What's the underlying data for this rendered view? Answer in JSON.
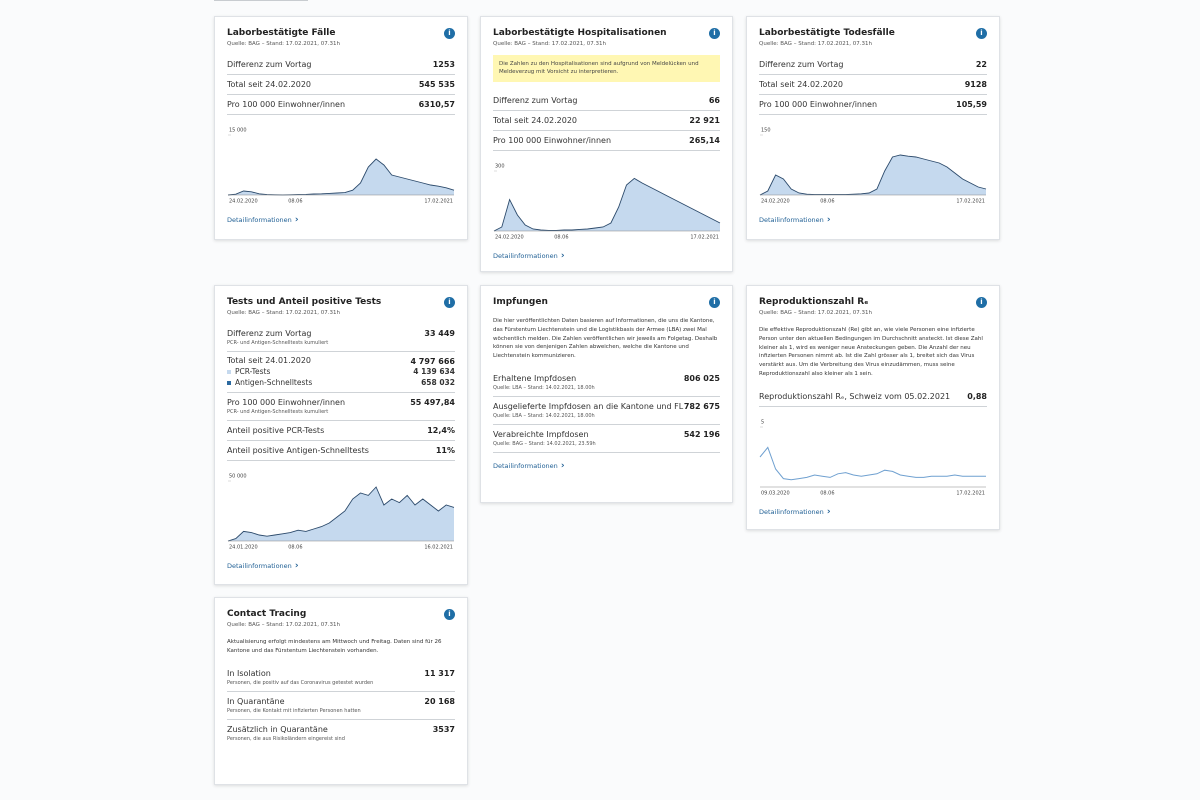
{
  "cards": [
    {
      "title": "Laborbestätigte Fälle",
      "source": "Quelle: BAG – Stand: 17.02.2021, 07.31h",
      "rows": [
        {
          "label": "Differenz zum Vortag",
          "value": "1253"
        },
        {
          "label": "Total seit 24.02.2020",
          "value": "545 535"
        },
        {
          "label": "Pro 100 000 Einwohner/innen",
          "value": "6310,57"
        }
      ],
      "chart": {
        "style": "area",
        "ylim": [
          0,
          15000
        ],
        "yticks": [
          {
            "value": 15000,
            "label": "15 000"
          }
        ],
        "x_labels": [
          "24.02.2020",
          "08.06",
          "17.02.2021"
        ],
        "values": [
          0,
          200,
          1000,
          800,
          300,
          100,
          50,
          30,
          50,
          100,
          150,
          250,
          300,
          400,
          500,
          600,
          1200,
          3000,
          7000,
          9000,
          7500,
          5000,
          4500,
          4000,
          3500,
          3000,
          2500,
          2200,
          1800,
          1200
        ]
      },
      "link": "Detailinformationen"
    },
    {
      "title": "Laborbestätigte Hospitalisationen",
      "source": "Quelle: BAG – Stand: 17.02.2021, 07.31h",
      "note": "Die Zahlen zu den Hospitalisationen sind aufgrund von Meldelücken und Meldeverzug mit Vorsicht zu interpretieren.",
      "rows": [
        {
          "label": "Differenz zum Vortag",
          "value": "66"
        },
        {
          "label": "Total seit 24.02.2020",
          "value": "22 921"
        },
        {
          "label": "Pro 100 000 Einwohner/innen",
          "value": "265,14"
        }
      ],
      "chart": {
        "style": "area",
        "ylim": [
          0,
          300
        ],
        "yticks": [
          300
        ],
        "x_labels": [
          "24.02.2020",
          "08.06",
          "17.02.2021"
        ],
        "values": [
          0,
          20,
          157,
          80,
          30,
          10,
          5,
          3,
          3,
          5,
          5,
          8,
          10,
          15,
          20,
          40,
          120,
          230,
          263,
          240,
          220,
          200,
          180,
          160,
          140,
          120,
          100,
          80,
          60,
          40
        ]
      },
      "link": "Detailinformationen"
    },
    {
      "title": "Laborbestätigte Todesfälle",
      "source": "Quelle: BAG – Stand: 17.02.2021, 07.31h",
      "rows": [
        {
          "label": "Differenz zum Vortag",
          "value": "22"
        },
        {
          "label": "Total seit 24.02.2020",
          "value": "9128"
        },
        {
          "label": "Pro 100 000 Einwohner/innen",
          "value": "105,59"
        }
      ],
      "chart": {
        "style": "area",
        "ylim": [
          0,
          150
        ],
        "yticks": [
          150
        ],
        "x_labels": [
          "24.02.2020",
          "08.06",
          "17.02.2021"
        ],
        "values": [
          0,
          10,
          50,
          40,
          15,
          5,
          2,
          1,
          1,
          1,
          1,
          1,
          2,
          3,
          5,
          15,
          60,
          95,
          100,
          97,
          95,
          90,
          85,
          80,
          70,
          55,
          40,
          30,
          20,
          15
        ]
      },
      "link": "Detailinformationen"
    },
    {
      "title": "Tests und Anteil positive Tests",
      "source": "Quelle: BAG – Stand: 17.02.2021, 07.31h",
      "rows": [
        {
          "label": "Differenz zum Vortag",
          "sublabel": "PCR- und Antigen-Schnelltests kumuliert",
          "value": "33 449"
        },
        {
          "label": "Total seit 24.01.2020",
          "value": "4 797 666",
          "items": [
            {
              "label": "PCR-Tests",
              "value": "4 139 634"
            },
            {
              "label": "Antigen-Schnelltests",
              "value": "658 032"
            }
          ]
        },
        {
          "label": "Pro 100 000 Einwohner/innen",
          "sublabel": "PCR- und Antigen-Schnelltests kumuliert",
          "value": "55 497,84"
        },
        {
          "label": "Anteil positive PCR-Tests",
          "value": "12,4%"
        },
        {
          "label": "Anteil positive Antigen-Schnelltests",
          "value": "11%"
        }
      ],
      "chart": {
        "style": "area",
        "ylim": [
          0,
          50000
        ],
        "yticks": [
          {
            "value": 50000,
            "label": "50 000"
          }
        ],
        "x_labels": [
          "24.01.2020",
          "08.06",
          "16.02.2021"
        ],
        "values": [
          0,
          2000,
          8000,
          7000,
          5000,
          4000,
          5000,
          6000,
          7000,
          9000,
          8000,
          10000,
          12000,
          15000,
          20000,
          25000,
          35000,
          40000,
          38000,
          45000,
          30000,
          35000,
          32000,
          38000,
          30000,
          35000,
          30000,
          25000,
          30000,
          28000
        ]
      },
      "link": "Detailinformationen"
    },
    {
      "title": "Impfungen",
      "description": "Die hier veröffentlichten Daten basieren auf Informationen, die uns die Kantone, das Fürstentum Liechtenstein und die Logistikbasis der Armee (LBA) zwei Mal wöchentlich melden. Die Zahlen veröffentlichen wir jeweils am Folgetag. Deshalb können sie von denjenigen Zahlen abweichen, welche die Kantone und Liechtenstein kommunizieren.",
      "rows": [
        {
          "label": "Erhaltene Impfdosen",
          "sublabel": "Quelle: LBA – Stand: 14.02.2021, 18.00h",
          "value": "806 025"
        },
        {
          "label": "Ausgelieferte Impfdosen an die Kantone und FL",
          "sublabel": "Quelle: LBA – Stand: 14.02.2021, 18.00h",
          "value": "782 675"
        },
        {
          "label": "Verabreichte Impfdosen",
          "sublabel": "Quelle: BAG – Stand: 14.02.2021, 23.59h",
          "value": "542 196"
        }
      ],
      "link": "Detailinformationen"
    },
    {
      "title": "Reproduktionszahl Rₑ",
      "source": "Quelle: BAG – Stand: 17.02.2021, 07.31h",
      "description": "Die effektive Reproduktionszahl (Re) gibt an, wie viele Personen eine infizierte Person unter den aktuellen Bedingungen im Durchschnitt ansteckt. Ist diese Zahl kleiner als 1, wird es weniger neue Ansteckungen geben. Die Anzahl der neu infizierten Personen nimmt ab. Ist die Zahl grösser als 1, breitet sich das Virus verstärkt aus. Um die Verbreitung des Virus einzudämmen, muss seine Reproduktionszahl also kleiner als 1 sein.",
      "rows": [
        {
          "label": "Reproduktionszahl Rₑ, Schweiz vom 05.02.2021",
          "value": "0,88"
        }
      ],
      "chart": {
        "style": "line",
        "ylim": [
          0,
          5
        ],
        "yticks": [
          5
        ],
        "x_labels": [
          "09.03.2020",
          "08.06",
          "17.02.2021"
        ],
        "values": [
          2.5,
          3.3,
          1.5,
          0.7,
          0.6,
          0.7,
          0.8,
          1.0,
          0.9,
          0.8,
          1.1,
          1.2,
          1.0,
          0.9,
          1.0,
          1.1,
          1.4,
          1.3,
          1.0,
          0.9,
          0.8,
          0.8,
          0.9,
          0.9,
          0.9,
          1.0,
          0.9,
          0.9,
          0.9,
          0.9
        ]
      },
      "link": "Detailinformationen"
    },
    {
      "title": "Contact Tracing",
      "source": "Quelle: BAG – Stand: 17.02.2021, 07.31h",
      "description": "Aktualisierung erfolgt mindestens am Mittwoch und Freitag. Daten sind für 26 Kantone und das Fürstentum Liechtenstein vorhanden.",
      "rows": [
        {
          "label": "In Isolation",
          "sublabel": "Personen, die positiv auf das Coronavirus getestet wurden",
          "value": "11 317"
        },
        {
          "label": "In Quarantäne",
          "sublabel": "Personen, die Kontakt mit infizierten Personen hatten",
          "value": "20 168"
        },
        {
          "label": "Zusätzlich in Quarantäne",
          "sublabel": "Personen, die aus Risikoländern eingereist sind",
          "value": "3537"
        }
      ]
    }
  ]
}
